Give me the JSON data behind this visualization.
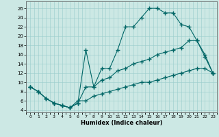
{
  "xlabel": "Humidex (Indice chaleur)",
  "bg_color": "#cce8e4",
  "line_color": "#006666",
  "xlim": [
    -0.5,
    23.5
  ],
  "ylim": [
    3.5,
    27.5
  ],
  "xticks": [
    0,
    1,
    2,
    3,
    4,
    5,
    6,
    7,
    8,
    9,
    10,
    11,
    12,
    13,
    14,
    15,
    16,
    17,
    18,
    19,
    20,
    21,
    22,
    23
  ],
  "yticks": [
    4,
    6,
    8,
    10,
    12,
    14,
    16,
    18,
    20,
    22,
    24,
    26
  ],
  "line1_x": [
    0,
    1,
    2,
    3,
    4,
    5,
    6,
    7,
    8,
    9,
    10,
    11,
    12,
    13,
    14,
    15,
    16,
    17,
    18,
    19,
    20,
    21,
    22,
    23
  ],
  "line1_y": [
    9,
    8,
    6.5,
    5.5,
    5,
    4.5,
    5.5,
    17,
    9,
    13,
    13,
    17,
    22,
    22,
    24,
    26,
    26,
    25,
    25,
    22.5,
    22,
    19,
    15.5,
    12
  ],
  "line2_x": [
    0,
    1,
    2,
    3,
    4,
    5,
    6,
    7,
    8,
    9,
    10,
    11,
    12,
    13,
    14,
    15,
    16,
    17,
    18,
    19,
    20,
    21,
    22,
    23
  ],
  "line2_y": [
    9,
    8,
    6.5,
    5.5,
    5,
    4.5,
    5.5,
    9,
    9,
    10.5,
    11,
    12.5,
    13,
    14,
    14.5,
    15,
    16,
    16.5,
    17,
    17.5,
    19,
    19,
    16,
    12
  ],
  "line3_x": [
    0,
    1,
    2,
    3,
    4,
    5,
    6,
    7,
    8,
    9,
    10,
    11,
    12,
    13,
    14,
    15,
    16,
    17,
    18,
    19,
    20,
    21,
    22,
    23
  ],
  "line3_y": [
    9,
    8,
    6.5,
    5.5,
    5,
    4.5,
    6,
    6,
    7,
    7.5,
    8,
    8.5,
    9,
    9.5,
    10,
    10,
    10.5,
    11,
    11.5,
    12,
    12.5,
    13,
    13,
    12
  ]
}
